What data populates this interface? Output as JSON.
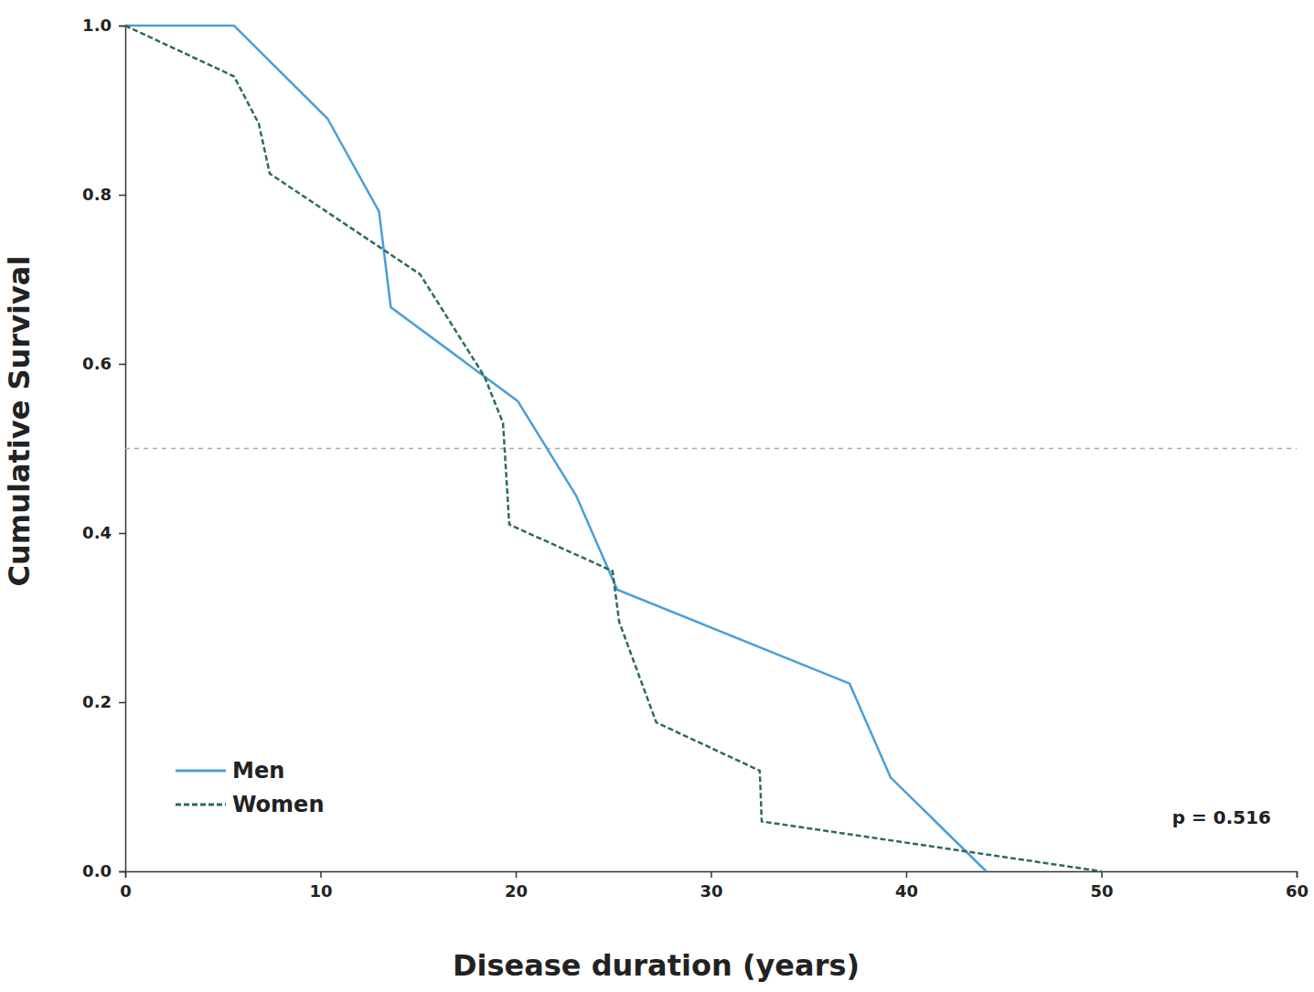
{
  "chart_data": {
    "type": "line",
    "x_label": "Disease duration (years)",
    "y_label": "Cumulative Survival",
    "annotation": "p = 0.516",
    "xlim": [
      0,
      60
    ],
    "xticks": [
      0,
      10,
      20,
      30,
      40,
      50,
      60
    ],
    "ylim": [
      0,
      1
    ],
    "yticks": [
      {
        "value": 0,
        "label": "0.0"
      },
      {
        "value": 0.2,
        "label": "0.2"
      },
      {
        "value": 0.4,
        "label": "0.4"
      },
      {
        "value": 0.6,
        "label": "0.6"
      },
      {
        "value": 0.8,
        "label": "0.8"
      },
      {
        "value": 1,
        "label": "1.0"
      }
    ],
    "hline": 0.5,
    "grid": false,
    "legend": "lower left",
    "series": [
      {
        "name": "Men",
        "color": "#4a9fd8",
        "line_style": "solid",
        "x": [
          0,
          5.57,
          10.36,
          13.0,
          13.6,
          20.1,
          23.1,
          25.2,
          37.1,
          39.2,
          44.1
        ],
        "values": [
          1,
          1,
          0.89,
          0.78,
          0.667,
          0.556,
          0.444,
          0.333,
          0.222,
          0.111,
          0
        ]
      },
      {
        "name": "Women",
        "color": "#2e6b5a",
        "line_style": "dashed",
        "x": [
          0,
          5.57,
          6.84,
          7.4,
          15.1,
          18.4,
          19.35,
          19.67,
          24.96,
          25.3,
          27.2,
          32.5,
          32.6,
          50
        ],
        "values": [
          1,
          0.94,
          0.884,
          0.825,
          0.706,
          0.585,
          0.53,
          0.41,
          0.355,
          0.295,
          0.176,
          0.119,
          0.059,
          0
        ]
      }
    ]
  }
}
